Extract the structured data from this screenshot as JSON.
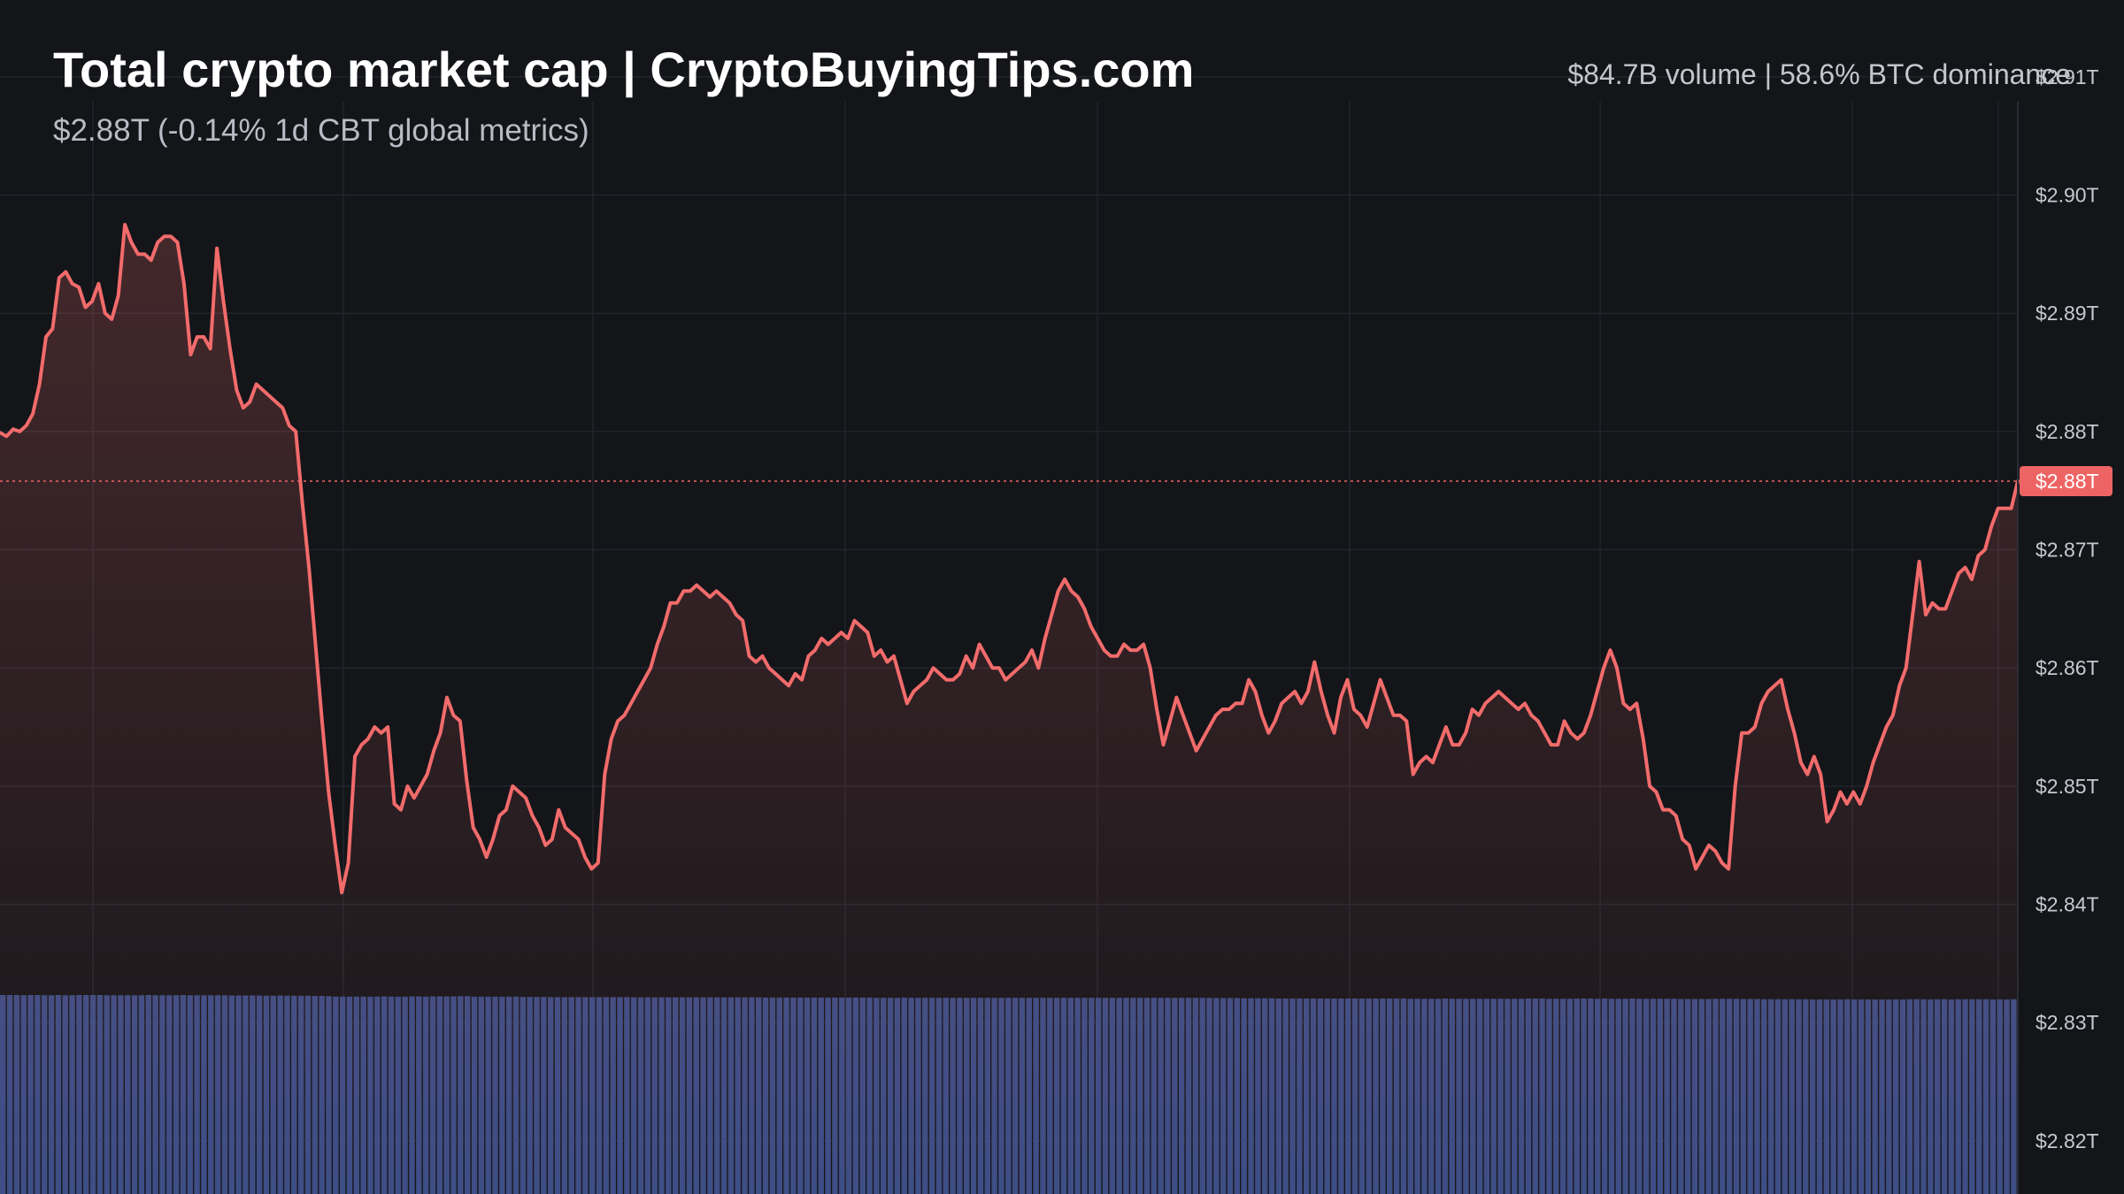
{
  "header": {
    "title": "Total crypto market cap | CryptoBuyingTips.com",
    "subtitle": "$2.88T (-0.14% 1d CBT global metrics)",
    "stats": "$84.7B volume | 58.6% BTC dominance"
  },
  "colors": {
    "background": "#131519",
    "line": "#f26b6b",
    "price_tag": "#ee6464",
    "volume": "#3a4d86",
    "grid": "#22252c"
  },
  "chart_data": {
    "type": "line",
    "title": "Total crypto market cap | CryptoBuyingTips.com",
    "ylim": [
      2.8155,
      2.9165
    ],
    "y_ticks": [
      {
        "value": 2.91,
        "label": "$2.91T"
      },
      {
        "value": 2.9,
        "label": "$2.90T"
      },
      {
        "value": 2.89,
        "label": "$2.89T"
      },
      {
        "value": 2.88,
        "label": "$2.88T"
      },
      {
        "value": 2.87,
        "label": "$2.87T"
      },
      {
        "value": 2.86,
        "label": "$2.86T"
      },
      {
        "value": 2.85,
        "label": "$2.85T"
      },
      {
        "value": 2.84,
        "label": "$2.84T"
      },
      {
        "value": 2.83,
        "label": "$2.83T"
      },
      {
        "value": 2.82,
        "label": "$2.82T"
      }
    ],
    "current_price": {
      "value": 2.8758,
      "label": "$2.88T"
    },
    "grid": true,
    "series": [
      {
        "values": [
          2.8799,
          2.8796,
          2.8802,
          2.88,
          2.8805,
          2.8815,
          2.884,
          2.888,
          2.8887,
          2.893,
          2.8935,
          2.8925,
          2.8922,
          2.8905,
          2.891,
          2.8925,
          2.89,
          2.8895,
          2.8915,
          2.8975,
          2.896,
          2.895,
          2.895,
          2.8945,
          2.896,
          2.8965,
          2.8965,
          2.896,
          2.8925,
          2.8865,
          2.888,
          2.888,
          2.887,
          2.8955,
          2.891,
          2.887,
          2.8835,
          2.882,
          2.8825,
          2.884,
          2.8835,
          2.883,
          2.8825,
          2.882,
          2.8805,
          2.88,
          2.874,
          2.8685,
          2.862,
          2.8555,
          2.8495,
          2.845,
          2.841,
          2.8435,
          2.8525,
          2.8535,
          2.854,
          2.855,
          2.8545,
          2.855,
          2.8485,
          2.848,
          2.85,
          2.849,
          2.85,
          2.851,
          2.853,
          2.8545,
          2.8575,
          2.856,
          2.8555,
          2.8505,
          2.8465,
          2.8455,
          2.844,
          2.8455,
          2.8475,
          2.848,
          2.85,
          2.8495,
          2.849,
          2.8475,
          2.8465,
          2.845,
          2.8455,
          2.848,
          2.8465,
          2.846,
          2.8455,
          2.844,
          2.843,
          2.8435,
          2.851,
          2.854,
          2.8555,
          2.856,
          2.857,
          2.858,
          2.859,
          2.86,
          2.862,
          2.8635,
          2.8655,
          2.8655,
          2.8665,
          2.8665,
          2.867,
          2.8665,
          2.866,
          2.8665,
          2.866,
          2.8655,
          2.8645,
          2.864,
          2.861,
          2.8605,
          2.861,
          2.86,
          2.8595,
          2.859,
          2.8585,
          2.8595,
          2.859,
          2.861,
          2.8615,
          2.8625,
          2.862,
          2.8625,
          2.863,
          2.8625,
          2.864,
          2.8635,
          2.863,
          2.861,
          2.8615,
          2.8605,
          2.861,
          2.859,
          2.857,
          2.858,
          2.8585,
          2.859,
          2.86,
          2.8595,
          2.859,
          2.859,
          2.8595,
          2.861,
          2.86,
          2.862,
          2.861,
          2.86,
          2.86,
          2.859,
          2.8595,
          2.86,
          2.8605,
          2.8615,
          2.86,
          2.8625,
          2.8645,
          2.8665,
          2.8675,
          2.8665,
          2.866,
          2.865,
          2.8635,
          2.8625,
          2.8615,
          2.861,
          2.861,
          2.862,
          2.8615,
          2.8615,
          2.862,
          2.86,
          2.8565,
          2.8535,
          2.8555,
          2.8575,
          2.856,
          2.8545,
          2.853,
          2.854,
          2.855,
          2.856,
          2.8565,
          2.8565,
          2.857,
          2.857,
          2.859,
          2.858,
          2.856,
          2.8545,
          2.8555,
          2.857,
          2.8575,
          2.858,
          2.857,
          2.858,
          2.8605,
          2.858,
          2.856,
          2.8545,
          2.8575,
          2.859,
          2.8565,
          2.856,
          2.855,
          2.857,
          2.859,
          2.8575,
          2.856,
          2.856,
          2.8555,
          2.851,
          2.852,
          2.8525,
          2.852,
          2.8535,
          2.855,
          2.8535,
          2.8535,
          2.8545,
          2.8565,
          2.856,
          2.857,
          2.8575,
          2.858,
          2.8575,
          2.857,
          2.8565,
          2.857,
          2.856,
          2.8555,
          2.8545,
          2.8535,
          2.8535,
          2.8555,
          2.8545,
          2.854,
          2.8545,
          2.856,
          2.858,
          2.86,
          2.8615,
          2.86,
          2.857,
          2.8565,
          2.857,
          2.854,
          2.85,
          2.8495,
          2.848,
          2.848,
          2.8475,
          2.8455,
          2.845,
          2.843,
          2.844,
          2.845,
          2.8445,
          2.8435,
          2.843,
          2.85,
          2.8545,
          2.8545,
          2.855,
          2.857,
          2.858,
          2.8585,
          2.859,
          2.8565,
          2.8545,
          2.852,
          2.851,
          2.8525,
          2.851,
          2.847,
          2.848,
          2.8495,
          2.8485,
          2.8495,
          2.8485,
          2.85,
          2.852,
          2.8535,
          2.855,
          2.856,
          2.8585,
          2.86,
          2.8645,
          2.869,
          2.8645,
          2.8655,
          2.865,
          2.865,
          2.8665,
          2.868,
          2.8685,
          2.8675,
          2.8695,
          2.87,
          2.872,
          2.8735,
          2.8735,
          2.8735,
          2.8758
        ]
      }
    ],
    "volume": [
      84.9,
      84.9,
      84.9,
      84.8,
      84.9,
      84.9,
      84.8,
      84.8,
      84.9,
      84.8,
      84.8,
      84.9,
      84.9,
      84.9,
      84.9,
      84.8,
      84.8,
      84.8,
      84.8,
      84.8,
      84.8,
      84.9,
      84.8,
      84.8,
      84.8,
      84.8,
      84.9,
      84.8,
      84.8,
      84.8,
      84.8,
      84.8,
      84.8,
      84.7,
      84.7,
      84.7,
      84.7,
      84.7,
      84.6,
      84.6,
      84.7,
      84.6,
      84.6,
      84.6,
      84.6,
      84.5,
      84.5,
      84.4,
      84.2,
      84.2,
      84.2,
      84.2,
      84.2,
      84.2,
      84.2,
      84.3,
      84.2,
      84.2,
      84.2,
      84.3,
      84.3,
      84.2,
      84.3,
      84.3,
      84.3,
      84.3,
      84.4,
      84.4,
      84.2,
      84.2,
      84.2,
      84.2,
      84.2,
      84.2,
      84.2,
      84.1,
      84.1,
      84.1,
      84.1,
      84.0,
      84.0,
      84.0,
      84.0,
      84.0,
      84.0,
      84.0,
      84.0,
      84.0,
      84.0,
      84.0,
      84.0,
      83.9,
      83.9,
      83.9,
      83.9,
      83.9,
      83.9,
      83.9,
      83.9,
      83.9,
      83.9,
      83.9,
      83.9,
      83.9,
      83.9,
      83.9,
      83.9,
      83.9,
      83.9,
      83.9,
      83.8,
      83.8,
      83.8,
      83.8,
      83.8,
      83.8,
      83.8,
      83.8,
      83.8,
      83.8,
      83.8,
      83.8,
      83.8,
      83.8,
      83.8,
      83.8,
      83.7,
      83.7,
      83.7,
      83.7,
      83.8,
      83.7,
      83.7,
      83.7,
      83.7,
      83.7,
      83.7,
      83.7,
      83.7,
      83.7,
      83.7,
      83.7,
      83.7,
      83.7,
      83.7,
      83.7,
      83.7,
      83.7,
      83.7,
      83.7,
      83.7,
      83.7,
      83.7,
      83.7,
      83.7,
      83.7,
      83.7,
      83.7,
      83.7,
      83.7,
      83.7,
      83.7,
      83.7,
      83.7,
      83.7,
      83.7,
      83.7,
      83.7,
      83.7,
      83.7,
      83.7,
      83.7,
      83.7,
      83.7,
      83.7,
      83.6,
      83.6,
      83.6,
      83.6,
      83.5,
      83.5,
      83.5,
      83.5,
      83.5,
      83.4,
      83.4,
      83.4,
      83.4,
      83.4,
      83.4,
      83.4,
      83.4,
      83.4,
      83.4,
      83.4,
      83.4,
      83.4,
      83.4,
      83.4,
      83.4,
      83.4,
      83.4,
      83.4,
      83.3,
      83.3,
      83.3,
      83.3,
      83.3,
      83.4,
      83.3,
      83.3,
      83.3,
      83.3,
      83.3,
      83.3,
      83.3,
      83.3,
      83.3,
      83.3,
      83.3,
      83.4,
      83.4,
      83.4,
      83.3,
      83.3,
      83.3,
      83.3,
      83.4,
      83.4,
      83.4,
      83.3,
      83.4,
      83.3,
      83.3,
      83.3,
      83.4,
      83.3,
      83.3,
      83.3,
      83.3,
      83.3,
      83.3,
      83.2,
      83.2,
      83.2,
      83.2,
      83.2,
      83.3,
      83.3,
      83.3,
      83.3,
      83.2,
      83.2,
      83.2,
      83.1,
      83.1,
      83.1,
      83.1,
      83.1,
      83.1,
      83.1,
      83.0,
      83.0,
      83.0,
      83.0,
      83.0,
      83.1,
      83.0,
      83.0,
      83.0,
      83.0,
      83.0,
      83.0,
      83.0,
      83.0,
      83.1,
      83.1,
      83.1,
      83.0,
      83.1,
      83.1,
      83.0,
      83.1,
      83.1,
      83.1,
      83.1,
      83.1,
      83.0,
      83.0,
      83.0,
      83.1
    ]
  }
}
